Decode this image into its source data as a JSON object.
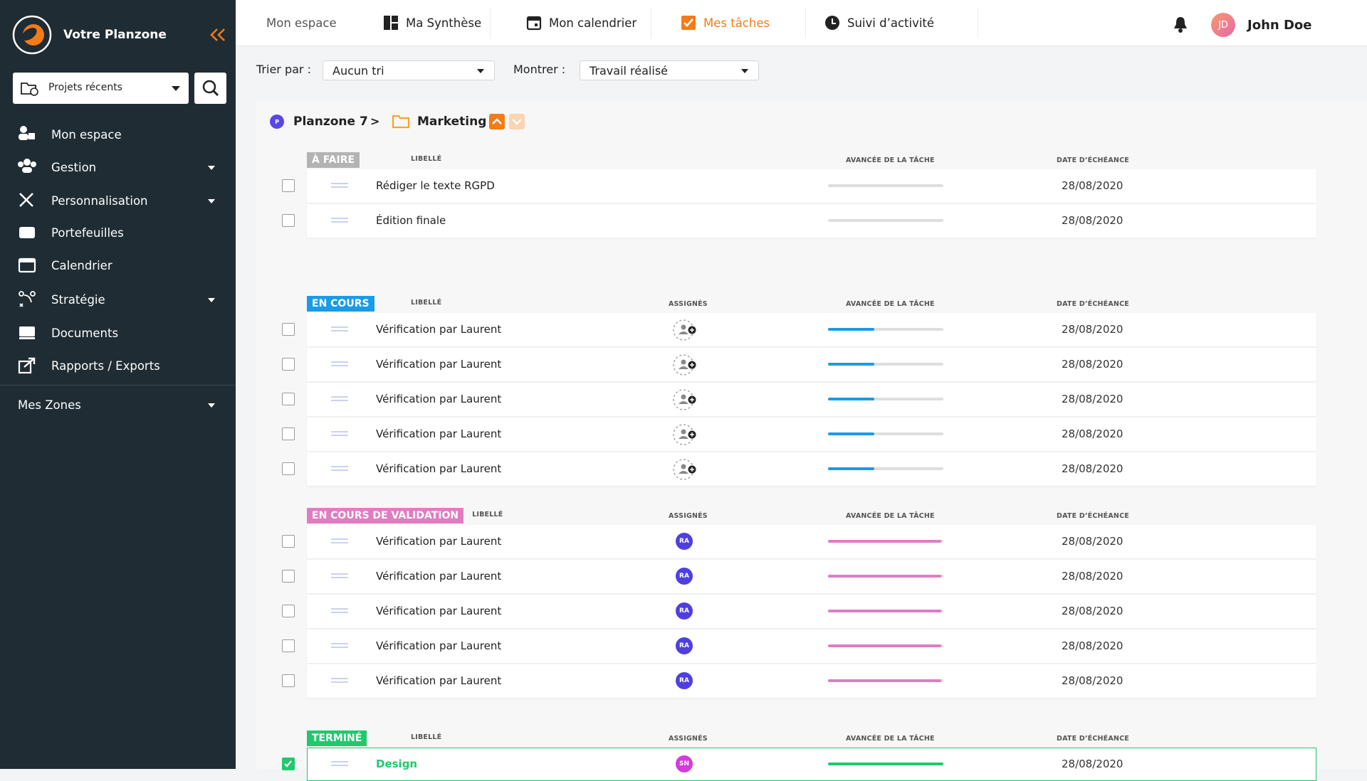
{
  "sidebar": {
    "brand": "Votre Planzone",
    "project_select": "Projets récents",
    "menu": [
      {
        "label": "Mon espace"
      },
      {
        "label": "Gestion",
        "dropdown": true
      },
      {
        "label": "Personnalisation",
        "dropdown": true
      },
      {
        "label": "Portefeuilles"
      },
      {
        "label": "Calendrier"
      },
      {
        "label": "Stratégie",
        "dropdown": true
      },
      {
        "label": "Documents"
      },
      {
        "label": "Rapports / Exports"
      }
    ],
    "zones": "Mes Zones"
  },
  "topbar": {
    "tabs": [
      "Mon espace",
      "Ma Synthèse",
      "Mon calendrier",
      "Mes tâches",
      "Suivi d’activité"
    ],
    "active_tab": 3,
    "user": {
      "initials": "JD",
      "name": "John Doe"
    }
  },
  "filters": {
    "sort_label": "Trier par :",
    "sort_value": "Aucun tri",
    "show_label": "Montrer :",
    "show_value": "Travail réalisé"
  },
  "breadcrumb": {
    "workspace_initial": "P",
    "workspace": "Planzone 7",
    "separator": ">",
    "folder": "Marketing"
  },
  "sections": [
    {
      "status": "À FAIRE",
      "color": "#b3b3b3",
      "columns": {
        "label": "LIBELLÉ",
        "progress": "AVANCÉE DE LA TÂCHE",
        "due": "DATE D’ÉCHÉANCE"
      },
      "rows": [
        {
          "label": "Rédiger le texte RGPD",
          "progress": 0,
          "due": "28/08/2020"
        },
        {
          "label": "Édition finale",
          "progress": 0,
          "due": "28/08/2020"
        }
      ]
    },
    {
      "status": "EN COURS",
      "color": "#1a9be6",
      "columns": {
        "label": "LIBELLÉ",
        "assignees": "ASSIGNÉS",
        "progress": "AVANCÉE DE LA TÂCHE",
        "due": "DATE D’ÉCHÉANCE"
      },
      "rows": [
        {
          "label": "Vérification par Laurent",
          "progress": 40,
          "due": "28/08/2020"
        },
        {
          "label": "Vérification par Laurent",
          "progress": 40,
          "due": "28/08/2020"
        },
        {
          "label": "Vérification par Laurent",
          "progress": 40,
          "due": "28/08/2020"
        },
        {
          "label": "Vérification par Laurent",
          "progress": 40,
          "due": "28/08/2020"
        },
        {
          "label": "Vérification par Laurent",
          "progress": 40,
          "due": "28/08/2020"
        }
      ]
    },
    {
      "status": "EN COURS DE VALIDATION",
      "color": "#e07cc2",
      "columns": {
        "label": "LIBELLÉ",
        "assignees": "ASSIGNÉS",
        "progress": "AVANCÉE DE LA TÂCHE",
        "due": "DATE D’ÉCHÉANCE"
      },
      "rows": [
        {
          "label": "Vérification par Laurent",
          "assignee": "RA",
          "progress": 98,
          "due": "28/08/2020"
        },
        {
          "label": "Vérification par Laurent",
          "assignee": "RA",
          "progress": 98,
          "due": "28/08/2020"
        },
        {
          "label": "Vérification par Laurent",
          "assignee": "RA",
          "progress": 98,
          "due": "28/08/2020"
        },
        {
          "label": "Vérification par Laurent",
          "assignee": "RA",
          "progress": 98,
          "due": "28/08/2020"
        },
        {
          "label": "Vérification par Laurent",
          "assignee": "RA",
          "progress": 98,
          "due": "28/08/2020"
        }
      ]
    },
    {
      "status": "TERMINÉ",
      "color": "#1fc96c",
      "columns": {
        "label": "LIBELLÉ",
        "assignees": "ASSIGNÉS",
        "progress": "AVANCÉE DE LA TÂCHE",
        "due": "DATE D’ÉCHÉANCE"
      },
      "rows": [
        {
          "label": "Design",
          "assignee": "SN",
          "progress": 100,
          "due": "28/08/2020",
          "checked": true
        }
      ]
    }
  ]
}
